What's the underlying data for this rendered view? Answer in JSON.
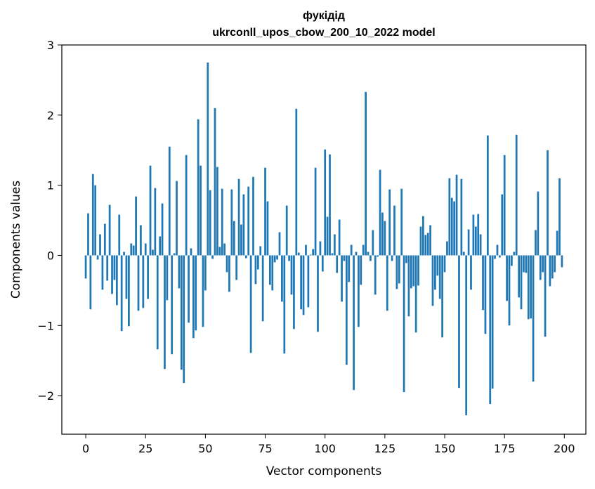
{
  "chart_data": {
    "type": "bar",
    "title": "фукідід",
    "subtitle": "ukrconll_upos_cbow_200_10_2022 model",
    "xlabel": "Vector components",
    "ylabel": "Components values",
    "xlim": [
      -10,
      209
    ],
    "ylim": [
      -2.55,
      3.0
    ],
    "xticks": [
      0,
      25,
      50,
      75,
      100,
      125,
      150,
      175,
      200
    ],
    "xtick_labels": [
      "0",
      "25",
      "50",
      "75",
      "100",
      "125",
      "150",
      "175",
      "200"
    ],
    "yticks": [
      -2,
      -1,
      0,
      1,
      2,
      3
    ],
    "ytick_labels": [
      "−2",
      "−1",
      "0",
      "1",
      "2",
      "3"
    ],
    "bar_color": "#1f77b4",
    "grid": false,
    "x": [
      0,
      1,
      2,
      3,
      4,
      5,
      6,
      7,
      8,
      9,
      10,
      11,
      12,
      13,
      14,
      15,
      16,
      17,
      18,
      19,
      20,
      21,
      22,
      23,
      24,
      25,
      26,
      27,
      28,
      29,
      30,
      31,
      32,
      33,
      34,
      35,
      36,
      37,
      38,
      39,
      40,
      41,
      42,
      43,
      44,
      45,
      46,
      47,
      48,
      49,
      50,
      51,
      52,
      53,
      54,
      55,
      56,
      57,
      58,
      59,
      60,
      61,
      62,
      63,
      64,
      65,
      66,
      67,
      68,
      69,
      70,
      71,
      72,
      73,
      74,
      75,
      76,
      77,
      78,
      79,
      80,
      81,
      82,
      83,
      84,
      85,
      86,
      87,
      88,
      89,
      90,
      91,
      92,
      93,
      94,
      95,
      96,
      97,
      98,
      99,
      100,
      101,
      102,
      103,
      104,
      105,
      106,
      107,
      108,
      109,
      110,
      111,
      112,
      113,
      114,
      115,
      116,
      117,
      118,
      119,
      120,
      121,
      122,
      123,
      124,
      125,
      126,
      127,
      128,
      129,
      130,
      131,
      132,
      133,
      134,
      135,
      136,
      137,
      138,
      139,
      140,
      141,
      142,
      143,
      144,
      145,
      146,
      147,
      148,
      149,
      150,
      151,
      152,
      153,
      154,
      155,
      156,
      157,
      158,
      159,
      160,
      161,
      162,
      163,
      164,
      165,
      166,
      167,
      168,
      169,
      170,
      171,
      172,
      173,
      174,
      175,
      176,
      177,
      178,
      179,
      180,
      181,
      182,
      183,
      184,
      185,
      186,
      187,
      188,
      189,
      190,
      191,
      192,
      193,
      194,
      195,
      196,
      197,
      198,
      199
    ],
    "values": [
      -0.33,
      0.6,
      -0.77,
      1.16,
      1.0,
      -0.06,
      0.3,
      -0.49,
      0.45,
      -0.36,
      0.72,
      -0.55,
      -0.35,
      -0.71,
      0.58,
      -1.08,
      0.05,
      -0.62,
      -1.01,
      0.17,
      0.14,
      0.84,
      -0.79,
      0.43,
      -0.75,
      0.17,
      -0.62,
      1.28,
      0.08,
      0.96,
      -1.34,
      0.27,
      0.74,
      -1.62,
      -0.64,
      1.55,
      -1.41,
      0.03,
      1.06,
      -0.47,
      -1.63,
      -1.82,
      1.43,
      -0.96,
      0.1,
      -1.18,
      -1.07,
      1.94,
      1.28,
      -1.02,
      -0.5,
      2.75,
      0.93,
      -0.05,
      2.1,
      1.26,
      0.12,
      0.95,
      0.17,
      -0.24,
      -0.52,
      0.94,
      0.49,
      -0.35,
      1.09,
      0.44,
      0.87,
      -0.04,
      0.98,
      -1.39,
      1.12,
      -0.41,
      -0.2,
      0.13,
      -0.94,
      1.25,
      0.77,
      -0.42,
      -0.5,
      -0.1,
      -0.06,
      0.33,
      -0.66,
      -1.4,
      0.71,
      -0.08,
      -0.56,
      -1.05,
      2.09,
      0.04,
      -0.77,
      -0.85,
      0.15,
      -0.74,
      0.01,
      0.09,
      1.25,
      -1.09,
      0.2,
      -0.23,
      1.51,
      0.55,
      1.44,
      0.03,
      0.3,
      -0.25,
      0.51,
      -0.66,
      -0.08,
      -1.56,
      -0.38,
      0.15,
      -1.92,
      0.05,
      -1.02,
      -0.42,
      0.15,
      2.33,
      0.05,
      -0.08,
      0.36,
      -0.56,
      -0.02,
      1.22,
      0.61,
      0.49,
      -0.79,
      0.94,
      -0.08,
      0.71,
      -0.48,
      -0.4,
      0.95,
      -1.95,
      -0.11,
      -0.87,
      -0.47,
      -0.44,
      -1.1,
      -0.43,
      0.41,
      0.56,
      0.29,
      0.32,
      0.43,
      -0.72,
      -0.49,
      -0.29,
      -0.62,
      -1.17,
      -0.24,
      0.2,
      1.1,
      0.82,
      0.77,
      1.15,
      -1.89,
      1.09,
      0.05,
      -2.28,
      0.37,
      -0.49,
      0.58,
      0.41,
      0.59,
      0.3,
      -0.78,
      -1.12,
      1.71,
      -2.12,
      -1.9,
      -0.05,
      0.15,
      -0.03,
      0.87,
      1.43,
      -0.65,
      -1.0,
      -0.15,
      0.05,
      1.72,
      -0.6,
      -0.77,
      -0.24,
      -0.25,
      -0.91,
      -0.9,
      -1.8,
      0.36,
      0.91,
      -0.35,
      -0.24,
      -1.16,
      1.5,
      -0.44,
      -0.33,
      -0.24,
      0.35,
      1.1,
      -0.17
    ]
  }
}
